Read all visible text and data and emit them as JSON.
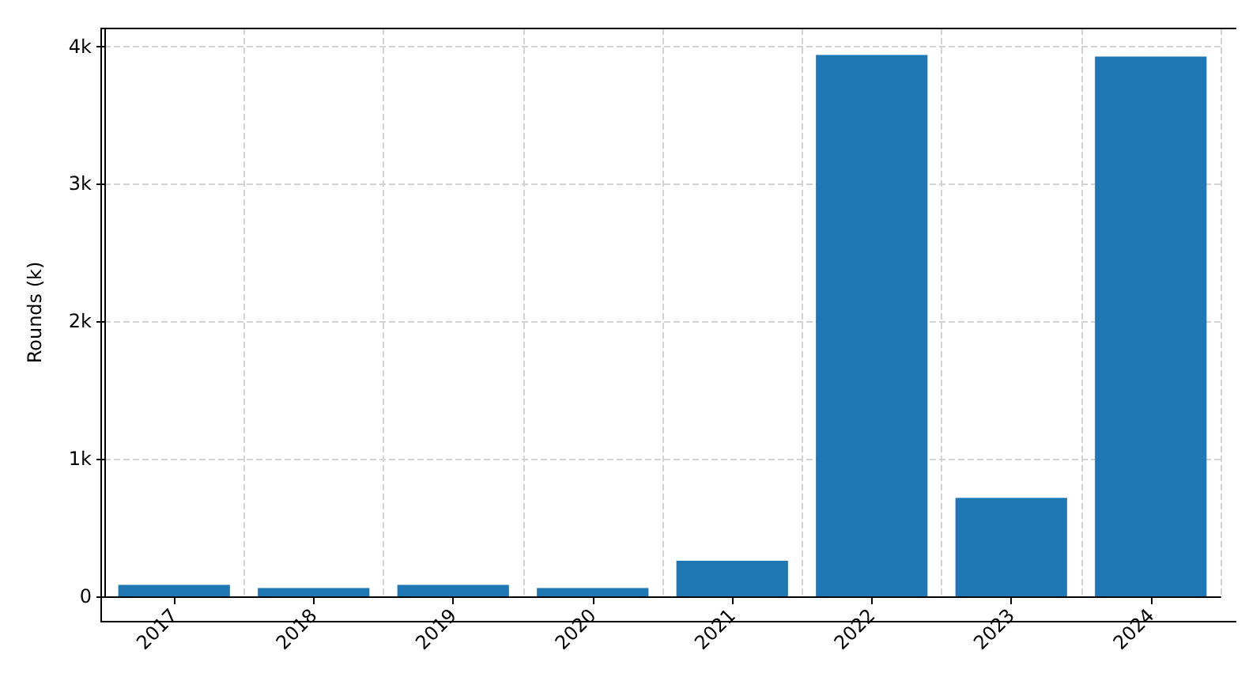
{
  "chart_data": {
    "type": "bar",
    "ylabel": "Rounds (k)",
    "categories": [
      "2017",
      "2018",
      "2019",
      "2020",
      "2021",
      "2022",
      "2023",
      "2024"
    ],
    "values": [
      83,
      60,
      83,
      60,
      259,
      3937,
      716,
      3926
    ],
    "color": "#1f77b4",
    "ylim": [
      0,
      4130
    ],
    "yticks": [
      0,
      {
        "value": 1000,
        "label": "1k"
      },
      {
        "value": 2000,
        "label": "2k"
      },
      {
        "value": 3000,
        "label": "3k"
      },
      {
        "value": 4000,
        "label": "4k"
      }
    ],
    "grid": true
  }
}
